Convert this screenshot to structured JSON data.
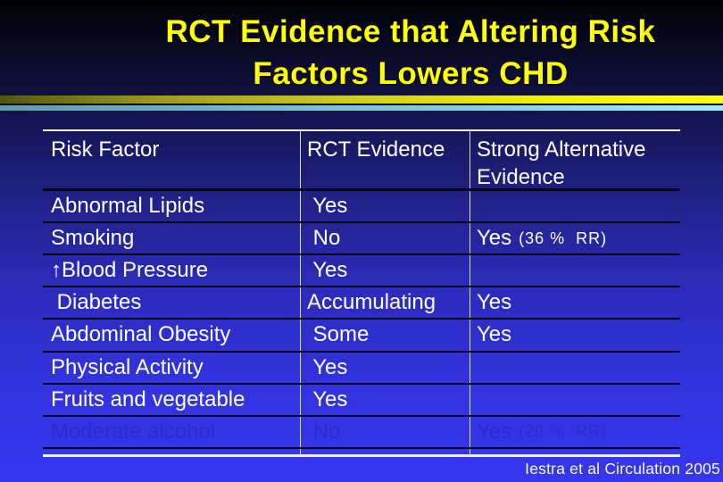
{
  "title": {
    "line1": "RCT Evidence that Altering Risk",
    "line2": "Factors Lowers CHD"
  },
  "credit": "Iestra et al Circulation 2005",
  "colors": {
    "title_text": "#ffff00",
    "background_top": "#010106",
    "background_bottom": "#3636f0",
    "divider_yellow": "#ffff12",
    "divider_cyan": "#9ceefc",
    "table_text": "#ffffff",
    "row_separator": "#05051e",
    "table_outer_border": "#f2f2f2",
    "faint_row_text": "#2b2bcc"
  },
  "table": {
    "columns": [
      "Risk Factor",
      "RCT Evidence",
      "Strong Alternative Evidence"
    ],
    "rows": [
      {
        "factor": "Abnormal Lipids",
        "rct": " Yes",
        "alt": "",
        "note": "",
        "faint": false
      },
      {
        "factor": "Smoking",
        "rct": " No",
        "alt": "Yes",
        "note": "(36 %  RR)",
        "faint": false
      },
      {
        "factor": "↑Blood Pressure",
        "rct": " Yes",
        "alt": "",
        "note": "",
        "faint": false
      },
      {
        "factor": " Diabetes",
        "rct": "Accumulating",
        "alt": "Yes",
        "note": "",
        "faint": false
      },
      {
        "factor": "Abdominal Obesity",
        "rct": " Some",
        "alt": "Yes",
        "note": "",
        "faint": false
      },
      {
        "factor": "Physical Activity",
        "rct": " Yes",
        "alt": "",
        "note": "",
        "faint": false
      },
      {
        "factor": "Fruits and vegetable",
        "rct": " Yes",
        "alt": "",
        "note": "",
        "faint": false
      },
      {
        "factor": "Moderate alcohol",
        "rct": " No",
        "alt": "Yes",
        "note": "(20 %  RR)",
        "faint": true
      },
      {
        "factor": "",
        "rct": "",
        "alt": "",
        "note": "",
        "faint": true
      }
    ]
  }
}
